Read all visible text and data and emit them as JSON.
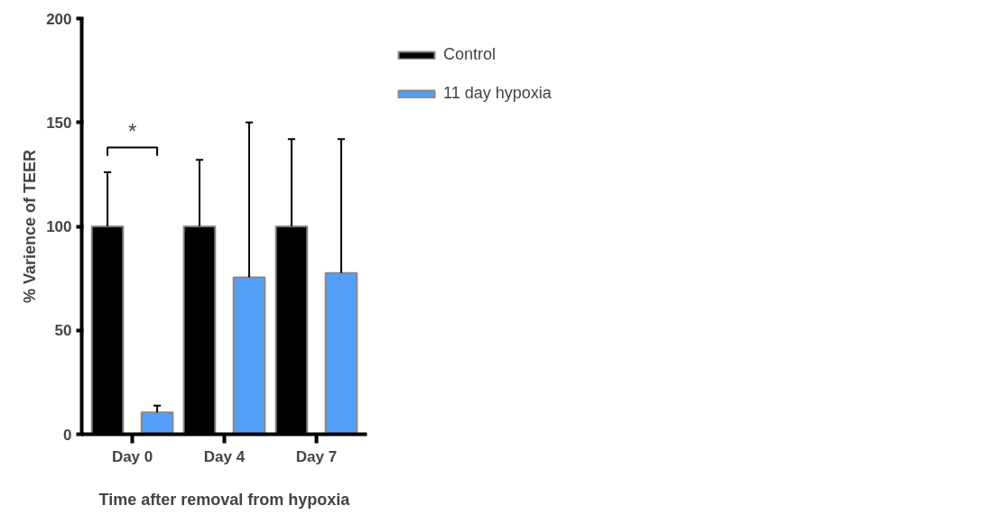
{
  "chart_data": {
    "type": "bar",
    "xlabel": "Time after removal from hypoxia",
    "ylabel": "% Varience of TEER",
    "categories": [
      "Day 0",
      "Day 4",
      "Day 7"
    ],
    "series": [
      {
        "name": "Control",
        "color": "#000000",
        "values": [
          100,
          100,
          100
        ],
        "errors": [
          [
            100,
            126
          ],
          [
            100,
            132
          ],
          [
            100,
            142
          ]
        ]
      },
      {
        "name": "11 day hypoxia",
        "color": "#559ef7",
        "values": [
          10.5,
          75.5,
          77.5
        ],
        "errors": [
          [
            10.5,
            13.8
          ],
          [
            75.5,
            150
          ],
          [
            77.5,
            142
          ]
        ]
      }
    ],
    "ylim": [
      0,
      200
    ],
    "yticks": [
      0,
      50,
      100,
      150,
      200
    ],
    "annotations": [
      "*"
    ],
    "grid": false,
    "legend": "right"
  }
}
